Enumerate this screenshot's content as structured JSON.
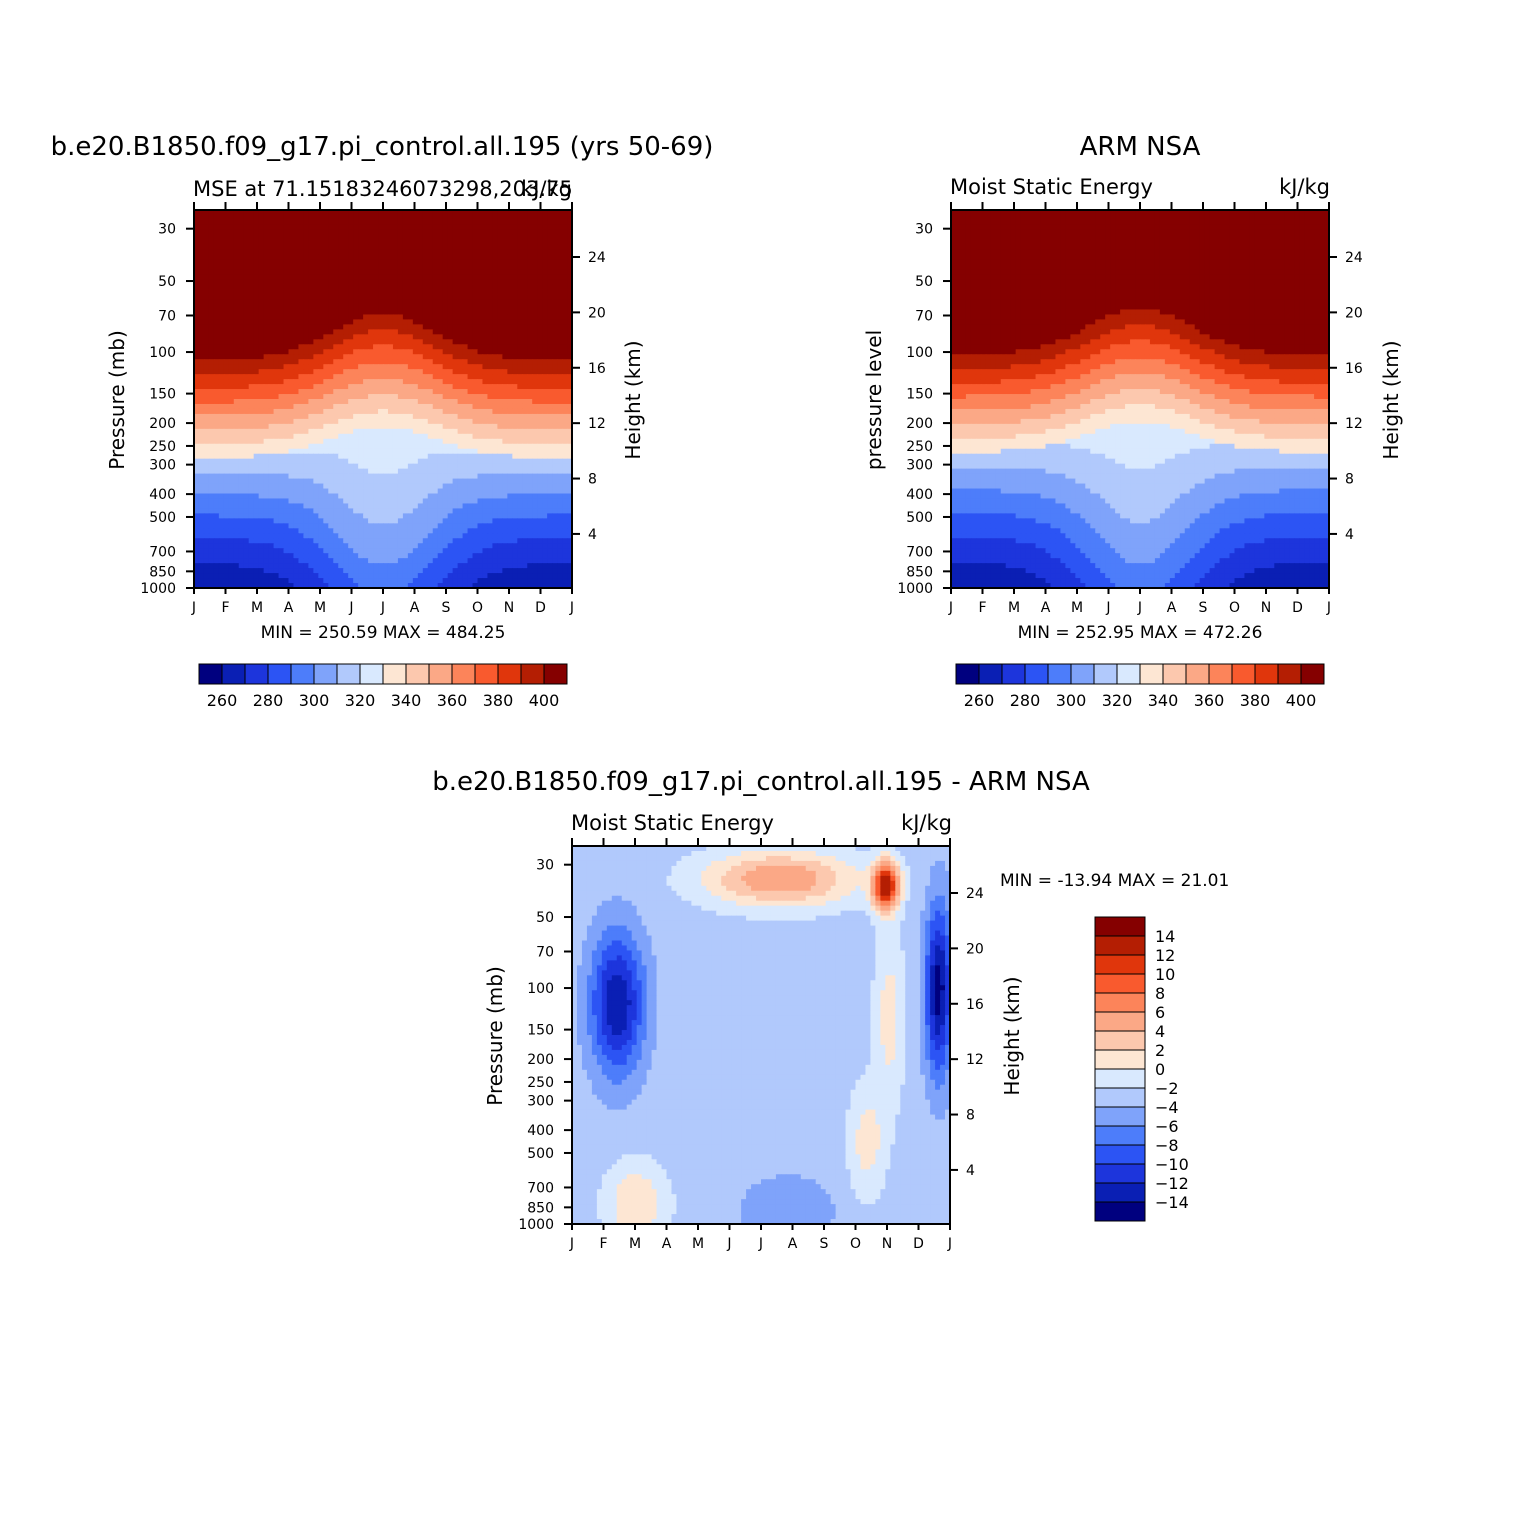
{
  "chart_data": [
    {
      "type": "heatmap",
      "title": "b.e20.B1850.f09_g17.pi_control.all.195 (yrs 50-69)",
      "left_subtitle": "MSE at 71.15183246073298,203.75",
      "right_subtitle": "kJ/kg",
      "ylabel": "Pressure (mb)",
      "y2label": "Height (km)",
      "x": [
        "J",
        "F",
        "M",
        "A",
        "M",
        "J",
        "J",
        "A",
        "S",
        "O",
        "N",
        "D",
        "J"
      ],
      "y_ticks": [
        30,
        50,
        70,
        100,
        150,
        200,
        250,
        300,
        400,
        500,
        700,
        850,
        1000
      ],
      "y2_ticks": [
        4,
        8,
        12,
        16,
        20,
        24
      ],
      "ylim": [
        1000,
        25
      ],
      "y_scale": "log",
      "min_text": "MIN = 250.59 MAX = 484.25",
      "min": 250.59,
      "max": 484.25,
      "levels": [
        260,
        270,
        280,
        290,
        300,
        310,
        320,
        330,
        340,
        350,
        360,
        370,
        380,
        390,
        400
      ],
      "colorbar_labels": [
        "260",
        "280",
        "300",
        "320",
        "340",
        "360",
        "380",
        "400"
      ],
      "field_params": {
        "base": 400,
        "trop_offset": 0,
        "shallow": 0
      }
    },
    {
      "type": "heatmap",
      "title": "ARM NSA",
      "left_subtitle": "Moist Static Energy",
      "right_subtitle": "kJ/kg",
      "ylabel": "pressure level",
      "y2label": "Height (km)",
      "x": [
        "J",
        "F",
        "M",
        "A",
        "M",
        "J",
        "J",
        "A",
        "S",
        "O",
        "N",
        "D",
        "J"
      ],
      "y_ticks": [
        30,
        50,
        70,
        100,
        150,
        200,
        250,
        300,
        400,
        500,
        700,
        850,
        1000
      ],
      "y2_ticks": [
        4,
        8,
        12,
        16,
        20,
        24
      ],
      "ylim": [
        1000,
        25
      ],
      "y_scale": "log",
      "min_text": "MIN = 252.95 MAX = 472.26",
      "min": 252.95,
      "max": 472.26,
      "levels": [
        260,
        270,
        280,
        290,
        300,
        310,
        320,
        330,
        340,
        350,
        360,
        370,
        380,
        390,
        400
      ],
      "colorbar_labels": [
        "260",
        "280",
        "300",
        "320",
        "340",
        "360",
        "380",
        "400"
      ],
      "field_params": {
        "base": 395,
        "trop_offset": 4,
        "shallow": 1
      }
    },
    {
      "type": "heatmap",
      "title": "b.e20.B1850.f09_g17.pi_control.all.195 - ARM NSA",
      "left_subtitle": "Moist Static Energy",
      "right_subtitle": "kJ/kg",
      "ylabel": "Pressure (mb)",
      "y2label": "Height (km)",
      "x": [
        "J",
        "F",
        "M",
        "A",
        "M",
        "J",
        "J",
        "A",
        "S",
        "O",
        "N",
        "D",
        "J"
      ],
      "y_ticks": [
        30,
        50,
        70,
        100,
        150,
        200,
        250,
        300,
        400,
        500,
        700,
        850,
        1000
      ],
      "y2_ticks": [
        4,
        8,
        12,
        16,
        20,
        24
      ],
      "ylim": [
        1000,
        25
      ],
      "y_scale": "log",
      "min_text": "MIN = -13.94 MAX =  21.01",
      "min": -13.94,
      "max": 21.01,
      "levels": [
        -14,
        -12,
        -10,
        -8,
        -6,
        -4,
        -2,
        0,
        2,
        4,
        6,
        8,
        10,
        12,
        14
      ],
      "colorbar_labels": [
        "14",
        "12",
        "10",
        "8",
        "6",
        "4",
        "2",
        "0",
        "-2",
        "-4",
        "-6",
        "-8",
        "-10",
        "-12",
        "-14"
      ]
    }
  ],
  "palette": [
    "#00007f",
    "#0a1fb4",
    "#1d35dc",
    "#2c54f4",
    "#4d7dfa",
    "#7fa3fa",
    "#b1c9fc",
    "#d9e9fe",
    "#fde6d3",
    "#fcc8ae",
    "#fba886",
    "#fc845a",
    "#f95a2e",
    "#e0360c",
    "#b41e03",
    "#850000"
  ],
  "layout_note": ""
}
